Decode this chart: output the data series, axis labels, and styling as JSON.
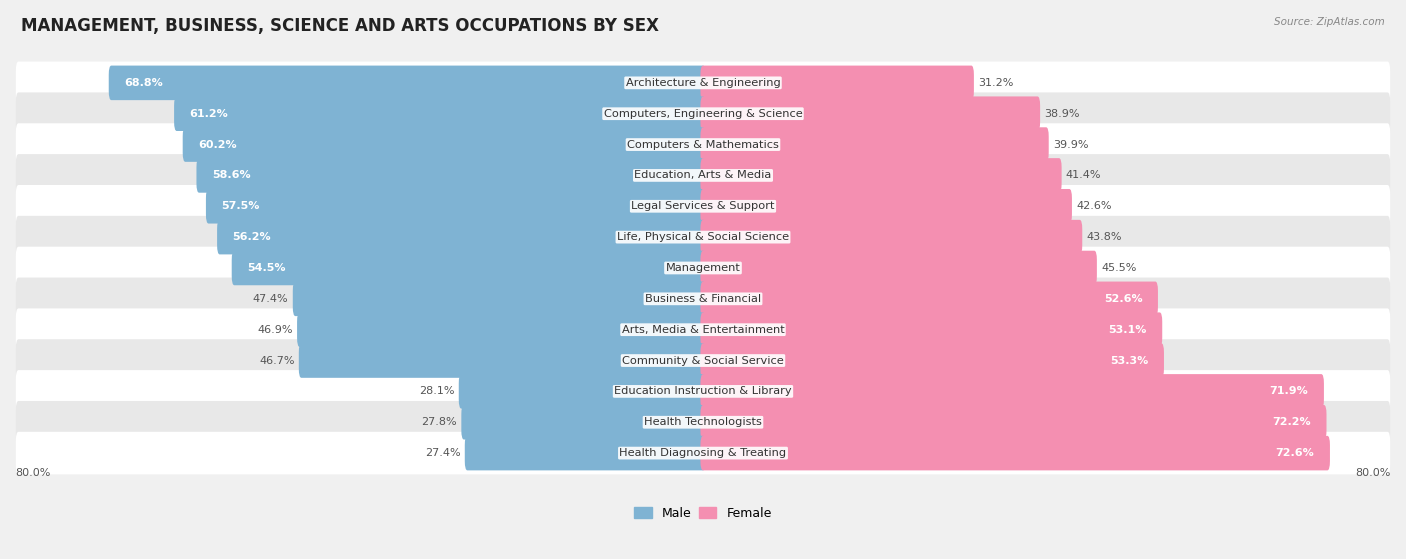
{
  "title": "MANAGEMENT, BUSINESS, SCIENCE AND ARTS OCCUPATIONS BY SEX",
  "source": "Source: ZipAtlas.com",
  "categories": [
    "Architecture & Engineering",
    "Computers, Engineering & Science",
    "Computers & Mathematics",
    "Education, Arts & Media",
    "Legal Services & Support",
    "Life, Physical & Social Science",
    "Management",
    "Business & Financial",
    "Arts, Media & Entertainment",
    "Community & Social Service",
    "Education Instruction & Library",
    "Health Technologists",
    "Health Diagnosing & Treating"
  ],
  "male_pct": [
    68.8,
    61.2,
    60.2,
    58.6,
    57.5,
    56.2,
    54.5,
    47.4,
    46.9,
    46.7,
    28.1,
    27.8,
    27.4
  ],
  "female_pct": [
    31.2,
    38.9,
    39.9,
    41.4,
    42.6,
    43.8,
    45.5,
    52.6,
    53.1,
    53.3,
    71.9,
    72.2,
    72.6
  ],
  "male_color": "#7fb3d3",
  "female_color": "#f48fb1",
  "female_color_dark": "#e8638e",
  "bg_color": "#f0f0f0",
  "row_bg_light": "#e8e8e8",
  "row_bg_white": "#ffffff",
  "axis_max": 80.0,
  "legend_male": "Male",
  "legend_female": "Female",
  "title_fontsize": 12,
  "label_fontsize": 8.2,
  "pct_fontsize": 8.0,
  "inside_threshold_male": 50,
  "inside_threshold_female": 50
}
